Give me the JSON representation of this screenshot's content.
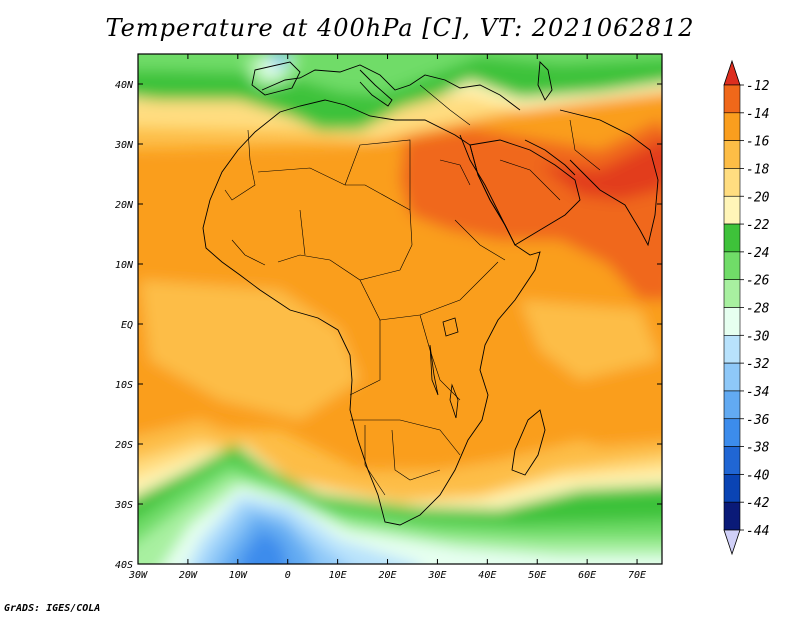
{
  "title": "Temperature at 400hPa [C], VT: 2021062812",
  "credit": "GrADS: IGES/COLA",
  "map": {
    "lon_range": [
      -30,
      75
    ],
    "lat_range": [
      -40,
      45
    ],
    "lon_ticks": [
      "30W",
      "20W",
      "10W",
      "0",
      "10E",
      "20E",
      "30E",
      "40E",
      "50E",
      "60E",
      "70E"
    ],
    "lat_ticks": [
      "40S",
      "30S",
      "20S",
      "10S",
      "EQ",
      "10N",
      "20N",
      "30N",
      "40N"
    ]
  },
  "colorbar": {
    "labels": [
      "-12",
      "-14",
      "-16",
      "-18",
      "-20",
      "-22",
      "-24",
      "-26",
      "-28",
      "-30",
      "-32",
      "-34",
      "-36",
      "-38",
      "-40",
      "-42",
      "-44"
    ],
    "colors": [
      "#dd2e1f",
      "#f0681a",
      "#fa9e1e",
      "#fdbd46",
      "#ffdd80",
      "#fff5b8",
      "#3ec23a",
      "#70dc68",
      "#a8f0a0",
      "#e6fff0",
      "#b8e2fc",
      "#8ec8f8",
      "#62aaf2",
      "#3c8cec",
      "#2066d4",
      "#0a44b4",
      "#0a1a78",
      "#d0d0f8"
    ]
  }
}
